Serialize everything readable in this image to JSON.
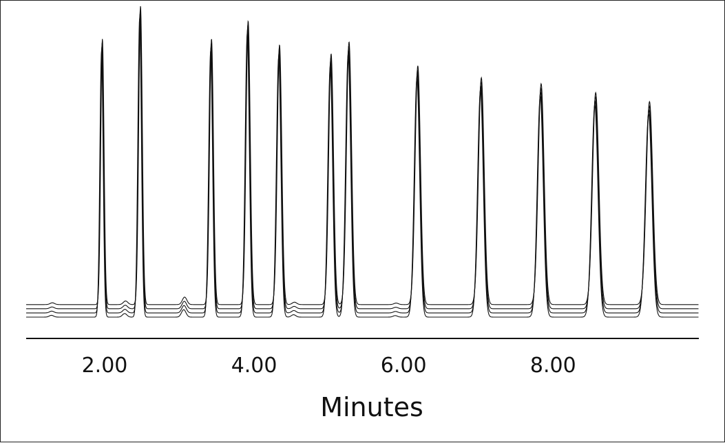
{
  "chart_data": {
    "type": "line",
    "title": "",
    "xlabel": "Minutes",
    "ylabel": "",
    "xlim": [
      0.95,
      9.95
    ],
    "ylim": [
      0,
      100
    ],
    "x_ticks": [
      2.0,
      4.0,
      6.0,
      8.0
    ],
    "x_tick_labels": [
      "2.00",
      "4.00",
      "6.00",
      "8.00"
    ],
    "grid": false,
    "legend": "none",
    "line_color": "#111111",
    "baseline_offsets": [
      0,
      1.4,
      2.8,
      4.2
    ],
    "peaks": [
      {
        "t": 1.97,
        "height": 89
      },
      {
        "t": 2.48,
        "height": 100
      },
      {
        "t": 3.43,
        "height": 89
      },
      {
        "t": 3.92,
        "height": 95
      },
      {
        "t": 4.34,
        "height": 87
      },
      {
        "t": 5.03,
        "height": 84
      },
      {
        "t": 5.27,
        "height": 88
      },
      {
        "t": 6.19,
        "height": 80
      },
      {
        "t": 7.04,
        "height": 76
      },
      {
        "t": 7.84,
        "height": 74
      },
      {
        "t": 8.57,
        "height": 71
      },
      {
        "t": 9.29,
        "height": 68
      }
    ],
    "minor_peaks": [
      {
        "t": 1.3,
        "height": 0.6
      },
      {
        "t": 2.28,
        "height": 1.2
      },
      {
        "t": 3.07,
        "height": 2.5
      },
      {
        "t": 4.54,
        "height": 0.8
      },
      {
        "t": 5.9,
        "height": 0.5
      }
    ]
  }
}
